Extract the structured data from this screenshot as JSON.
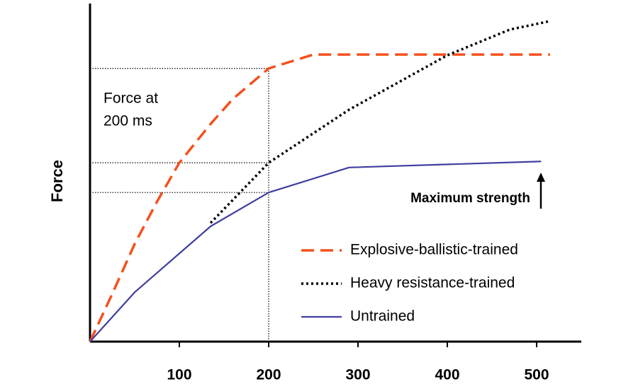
{
  "chart_data": {
    "type": "line",
    "y_label": "Force",
    "annotation_lines": [
      "Force at",
      "200 ms"
    ],
    "max_label": "Maximum strength",
    "guide_x": 200,
    "xlim": [
      0,
      550
    ],
    "ylim": [
      0,
      100
    ],
    "xticks": [
      100,
      200,
      300,
      400,
      500
    ],
    "series": [
      {
        "name": "Explosive-ballistic-trained",
        "color": "#f4501e",
        "dash": "dashed",
        "x": [
          0,
          25,
          50,
          75,
          100,
          135,
          160,
          200,
          250,
          515
        ],
        "values": [
          0,
          14.2,
          28.9,
          41.4,
          52.9,
          64.4,
          71.8,
          80.8,
          84.9,
          84.9
        ]
      },
      {
        "name": "Heavy resistance-trained",
        "color": "#000000",
        "dash": "dotted",
        "x": [
          135,
          200,
          290,
          400,
          470,
          515
        ],
        "values": [
          35.1,
          52.9,
          68.6,
          84.7,
          92.3,
          94.8
        ]
      },
      {
        "name": "Untrained",
        "color": "#3f3fa0",
        "dash": "solid",
        "x": [
          0,
          50,
          135,
          200,
          290,
          505
        ],
        "values": [
          0,
          14.6,
          34.1,
          44.1,
          51.5,
          53.3
        ]
      }
    ]
  }
}
